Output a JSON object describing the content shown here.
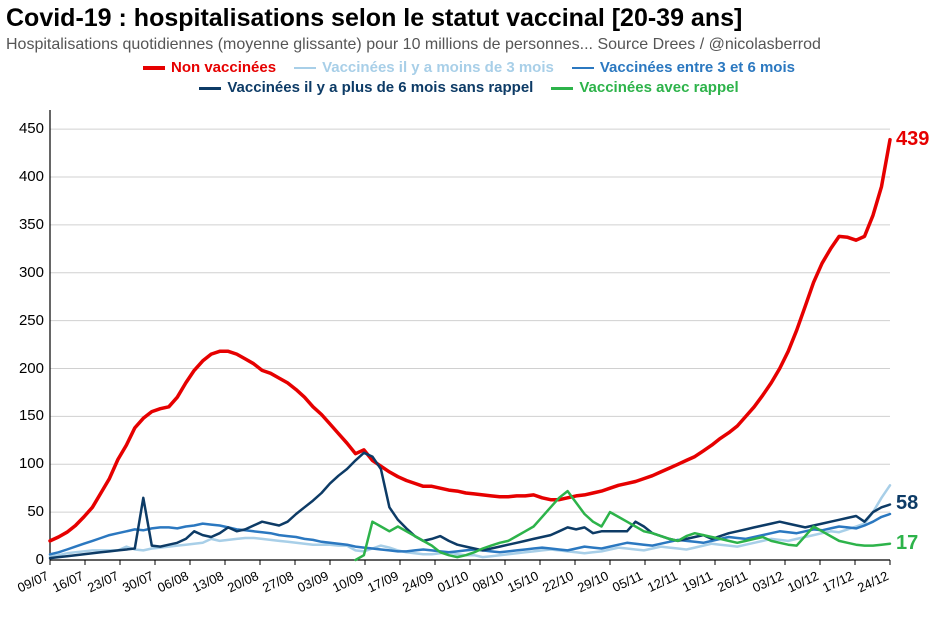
{
  "title": "Covid-19 : hospitalisations selon le statut vaccinal [20-39 ans]",
  "subtitle": "Hospitalisations quotidiennes (moyenne glissante) pour 10 millions de personnes... Source Drees / @nicolasberrod",
  "chart": {
    "type": "line",
    "background_color": "#ffffff",
    "grid_color": "#d0d0d0",
    "axis_color": "#000000",
    "title_fontsize": 25,
    "subtitle_fontsize": 16,
    "legend_fontsize": 15,
    "tick_fontsize": 15,
    "endlabel_fontsize": 20,
    "ylim": [
      0,
      470
    ],
    "ytick_step": 50,
    "yticks": [
      0,
      50,
      100,
      150,
      200,
      250,
      300,
      350,
      400,
      450
    ],
    "x_categories": [
      "09/07",
      "16/07",
      "23/07",
      "30/07",
      "06/08",
      "13/08",
      "20/08",
      "27/08",
      "03/09",
      "10/09",
      "17/09",
      "24/09",
      "01/10",
      "08/10",
      "15/10",
      "22/10",
      "29/10",
      "05/11",
      "12/11",
      "19/11",
      "26/11",
      "03/12",
      "10/12",
      "17/12",
      "24/12"
    ],
    "series": [
      {
        "name": "Non vaccinées",
        "color": "#e60000",
        "line_width": 3.5,
        "end_label": "439",
        "data": [
          20,
          24,
          29,
          36,
          45,
          55,
          70,
          85,
          105,
          120,
          138,
          148,
          155,
          158,
          160,
          170,
          185,
          198,
          208,
          215,
          218,
          218,
          215,
          210,
          205,
          198,
          195,
          190,
          185,
          178,
          170,
          160,
          152,
          142,
          132,
          122,
          111,
          115,
          104,
          98,
          92,
          87,
          83,
          80,
          77,
          77,
          75,
          73,
          72,
          70,
          69,
          68,
          67,
          66,
          66,
          67,
          67,
          68,
          65,
          63,
          63,
          65,
          67,
          68,
          70,
          72,
          75,
          78,
          80,
          82,
          85,
          88,
          92,
          96,
          100,
          104,
          108,
          114,
          120,
          127,
          133,
          140,
          150,
          160,
          172,
          185,
          200,
          218,
          240,
          265,
          290,
          310,
          325,
          338,
          337,
          334,
          338,
          360,
          390,
          439
        ]
      },
      {
        "name": "Vaccinées il y a moins de 3 mois",
        "color": "#a8cfe8",
        "line_width": 2.5,
        "end_label": "",
        "data": [
          4,
          5,
          7,
          8,
          9,
          10,
          10,
          10,
          10,
          14,
          11,
          10,
          12,
          13,
          14,
          15,
          16,
          17,
          18,
          22,
          20,
          21,
          22,
          23,
          23,
          22,
          21,
          20,
          19,
          18,
          17,
          16,
          16,
          16,
          15,
          15,
          10,
          9,
          12,
          15,
          13,
          10,
          8,
          7,
          6,
          6,
          7,
          8,
          6,
          5,
          5,
          3,
          4,
          5,
          6,
          7,
          8,
          9,
          10,
          11,
          10,
          9,
          8,
          7,
          8,
          9,
          11,
          13,
          12,
          11,
          10,
          12,
          14,
          13,
          12,
          11,
          13,
          15,
          17,
          16,
          15,
          14,
          16,
          18,
          20,
          22,
          21,
          20,
          22,
          24,
          26,
          28,
          30,
          29,
          32,
          35,
          38,
          50,
          65,
          78
        ]
      },
      {
        "name": "Vaccinées entre 3 et 6 mois",
        "color": "#2b78c0",
        "line_width": 2.5,
        "end_label": "",
        "data": [
          6,
          8,
          11,
          14,
          17,
          20,
          23,
          26,
          28,
          30,
          32,
          31,
          33,
          34,
          34,
          33,
          35,
          36,
          38,
          37,
          36,
          34,
          32,
          31,
          30,
          29,
          28,
          26,
          25,
          24,
          22,
          21,
          19,
          18,
          17,
          16,
          14,
          13,
          12,
          11,
          10,
          9,
          9,
          10,
          11,
          10,
          9,
          8,
          9,
          10,
          11,
          10,
          9,
          8,
          9,
          10,
          11,
          12,
          13,
          12,
          11,
          10,
          12,
          14,
          13,
          12,
          14,
          16,
          18,
          17,
          16,
          15,
          17,
          19,
          21,
          20,
          19,
          18,
          20,
          22,
          24,
          23,
          22,
          24,
          26,
          28,
          30,
          29,
          28,
          30,
          32,
          31,
          33,
          35,
          34,
          33,
          36,
          40,
          45,
          48
        ]
      },
      {
        "name": "Vaccinées il y a plus de 6 mois sans rappel",
        "color": "#0d3b66",
        "line_width": 2.5,
        "end_label": "58",
        "data": [
          2,
          3,
          4,
          5,
          6,
          7,
          8,
          9,
          10,
          11,
          12,
          65,
          15,
          14,
          16,
          18,
          22,
          30,
          26,
          24,
          28,
          34,
          30,
          32,
          36,
          40,
          38,
          36,
          40,
          48,
          55,
          62,
          70,
          80,
          88,
          95,
          104,
          112,
          108,
          95,
          55,
          42,
          33,
          25,
          20,
          22,
          25,
          20,
          16,
          14,
          12,
          10,
          12,
          14,
          16,
          18,
          20,
          22,
          24,
          26,
          30,
          34,
          32,
          34,
          28,
          30,
          30,
          30,
          30,
          40,
          35,
          28,
          25,
          22,
          20,
          22,
          24,
          26,
          22,
          25,
          28,
          30,
          32,
          34,
          36,
          38,
          40,
          38,
          36,
          34,
          36,
          38,
          40,
          42,
          44,
          46,
          40,
          50,
          55,
          58
        ]
      },
      {
        "name": "Vaccinées avec rappel",
        "color": "#2db34a",
        "line_width": 2.5,
        "end_label": "17",
        "data": [
          null,
          null,
          null,
          null,
          null,
          null,
          null,
          null,
          null,
          null,
          null,
          null,
          null,
          null,
          null,
          null,
          null,
          null,
          null,
          null,
          null,
          null,
          null,
          null,
          null,
          null,
          null,
          null,
          null,
          null,
          null,
          null,
          null,
          null,
          null,
          null,
          0,
          5,
          40,
          35,
          30,
          35,
          30,
          25,
          20,
          15,
          8,
          5,
          3,
          5,
          8,
          12,
          15,
          18,
          20,
          25,
          30,
          35,
          45,
          55,
          65,
          72,
          60,
          48,
          40,
          35,
          50,
          45,
          40,
          35,
          30,
          28,
          25,
          22,
          20,
          25,
          28,
          26,
          24,
          22,
          20,
          18,
          20,
          22,
          24,
          20,
          18,
          16,
          15,
          25,
          35,
          30,
          25,
          20,
          18,
          16,
          15,
          15,
          16,
          17
        ]
      }
    ]
  }
}
